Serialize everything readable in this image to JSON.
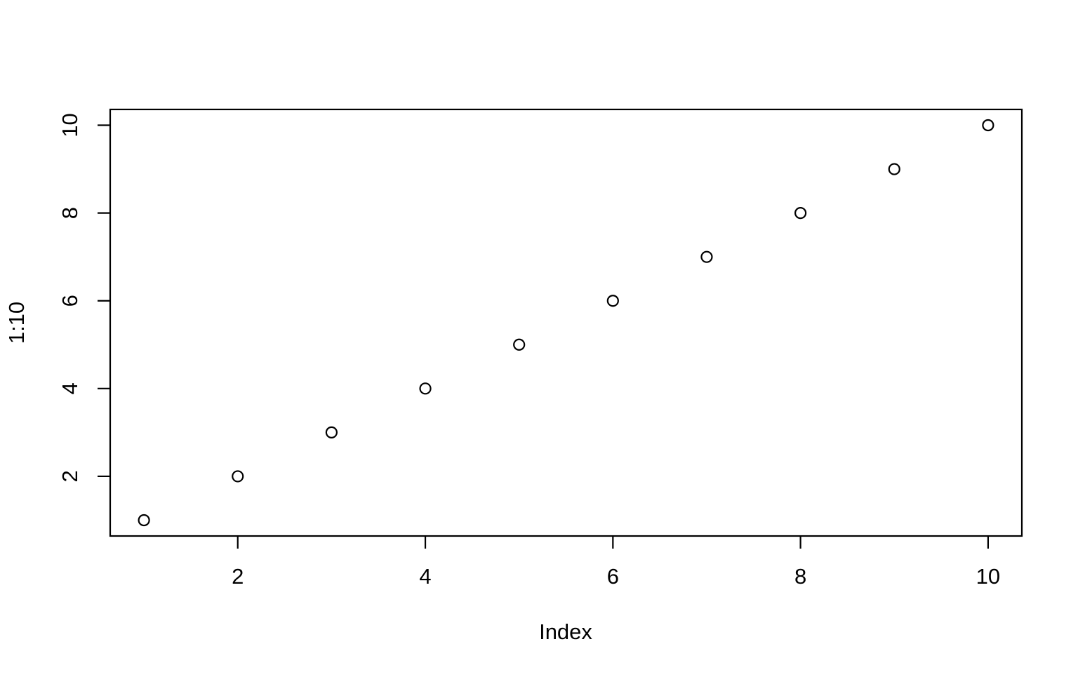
{
  "figure": {
    "background": "#ffffff",
    "foreground": "#000000"
  },
  "chart_data": {
    "type": "scatter",
    "title": "",
    "xlabel": "Index",
    "ylabel": "1:10",
    "x": [
      1,
      2,
      3,
      4,
      5,
      6,
      7,
      8,
      9,
      10
    ],
    "y": [
      1,
      2,
      3,
      4,
      5,
      6,
      7,
      8,
      9,
      10
    ],
    "x_ticks": [
      2,
      4,
      6,
      8,
      10
    ],
    "y_ticks": [
      2,
      4,
      6,
      8,
      10
    ],
    "x_tick_labels": [
      "2",
      "4",
      "6",
      "8",
      "10"
    ],
    "y_tick_labels": [
      "2",
      "4",
      "6",
      "8",
      "10"
    ],
    "xlim": [
      0.64,
      10.36
    ],
    "ylim": [
      0.64,
      10.36
    ],
    "grid": false,
    "legend": "none",
    "marker": "open-circle",
    "marker_color": "#000000",
    "box": "full-frame"
  }
}
